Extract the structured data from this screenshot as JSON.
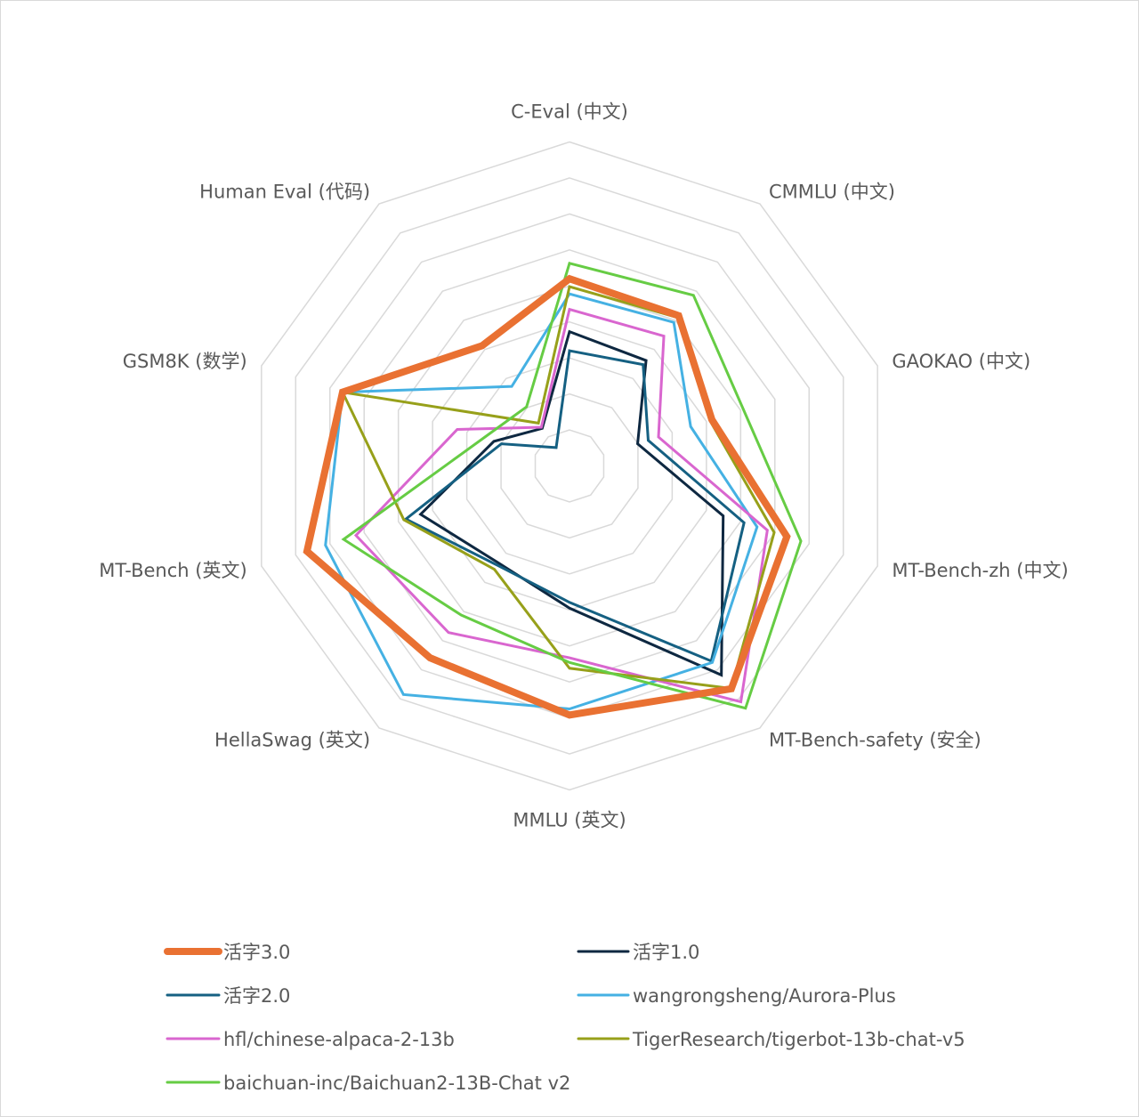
{
  "chart_data": {
    "type": "radar",
    "title": "",
    "categories": [
      "C-Eval (中文)",
      "CMMLU (中文)",
      "GAOKAO (中文)",
      "MT-Bench-zh (中文)",
      "MT-Bench-safety (安全)",
      "MMLU (英文)",
      "HellaSwag (英文)",
      "MT-Bench (英文)",
      "GSM8K (数学)",
      "Human Eval (代码)"
    ],
    "rlim": [
      0,
      90
    ],
    "grid_step": 10,
    "grid": true,
    "legend_position": "bottom",
    "series": [
      {
        "name": "活字3.0",
        "color": "#E97132",
        "values": [
          52,
          51.6,
          41.6,
          63.5,
          76.5,
          69.2,
          65.9,
          76.7,
          66.3,
          41.3
        ]
      },
      {
        "name": "活字1.0",
        "color": "#0E2841",
        "values": [
          37.3,
          36.2,
          19.9,
          44.9,
          71.8,
          39.5,
          33.4,
          43.5,
          22.1,
          12.9
        ]
      },
      {
        "name": "活字2.0",
        "color": "#156082",
        "values": [
          32,
          34.8,
          23,
          51,
          67,
          37.9,
          34.1,
          47.8,
          19.9,
          6.3
        ]
      },
      {
        "name": "wangrongsheng/Aurora-Plus",
        "color": "#45B1E3",
        "values": [
          47.8,
          49.3,
          35.4,
          54.8,
          67.5,
          67.5,
          78.5,
          71.3,
          66.3,
          27.3
        ]
      },
      {
        "name": "hfl/chinese-alpaca-2-13b",
        "color": "#D966CF",
        "values": [
          43.5,
          44.6,
          26,
          57.8,
          81,
          53.3,
          57.2,
          62.4,
          32.8,
          13.3
        ]
      },
      {
        "name": "TigerResearch/tigerbot-13b-chat-v5",
        "color": "#97A01A",
        "values": [
          49.8,
          51,
          41,
          59.8,
          76.4,
          56.2,
          35.5,
          48.4,
          66.3,
          14.7
        ]
      },
      {
        "name": "baichuan-inc/Baichuan2-13B-Chat v2",
        "color": "#66CC44",
        "values": [
          56.3,
          58.6,
          50.8,
          67.6,
          83.2,
          54.6,
          51.2,
          66,
          25.1,
          20.3
        ]
      }
    ]
  }
}
